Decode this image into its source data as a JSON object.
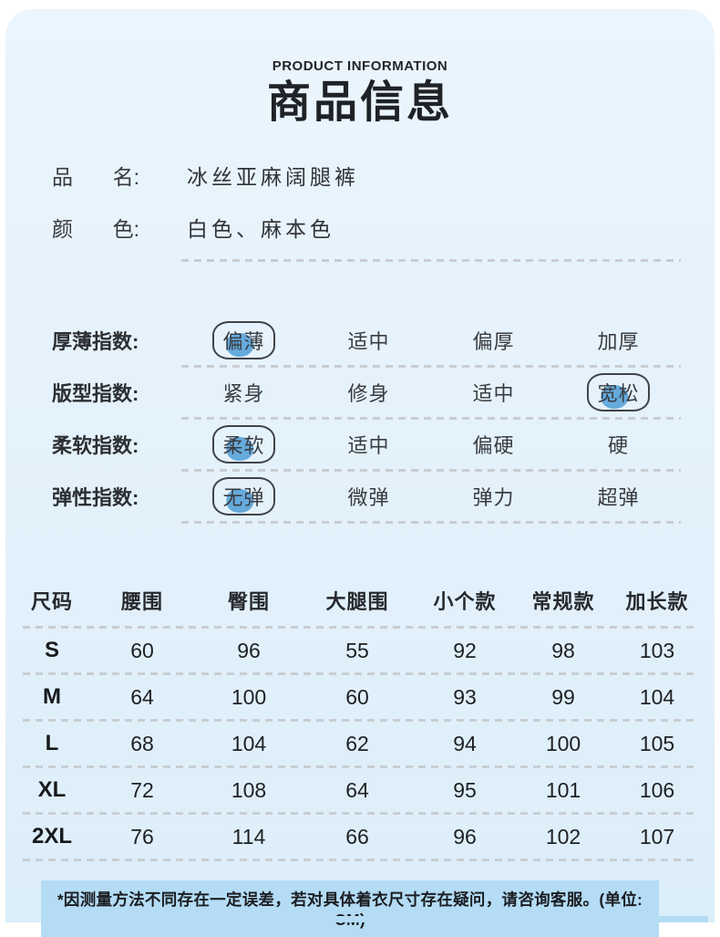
{
  "meta": {
    "eyebrow": "PRODUCT INFORMATION",
    "title": "商品信息"
  },
  "info": {
    "rows": [
      {
        "label_first": "品",
        "label_rest": "名:",
        "value": "冰丝亚麻阔腿裤"
      },
      {
        "label_first": "颜",
        "label_rest": "色:",
        "value": "白色、麻本色"
      }
    ]
  },
  "indices": {
    "rows": [
      {
        "label": "厚薄指数:",
        "options": [
          "偏薄",
          "适中",
          "偏厚",
          "加厚"
        ],
        "selected_index": 0
      },
      {
        "label": "版型指数:",
        "options": [
          "紧身",
          "修身",
          "适中",
          "宽松"
        ],
        "selected_index": 3
      },
      {
        "label": "柔软指数:",
        "options": [
          "柔软",
          "适中",
          "偏硬",
          "硬"
        ],
        "selected_index": 0
      },
      {
        "label": "弹性指数:",
        "options": [
          "无弹",
          "微弹",
          "弹力",
          "超弹"
        ],
        "selected_index": 0
      }
    ]
  },
  "size_table": {
    "headers": [
      "尺码",
      "腰围",
      "臀围",
      "大腿围",
      "小个款",
      "常规款",
      "加长款"
    ],
    "rows": [
      {
        "size": "S",
        "values": [
          "60",
          "96",
          "55",
          "92",
          "98",
          "103"
        ]
      },
      {
        "size": "M",
        "values": [
          "64",
          "100",
          "60",
          "93",
          "99",
          "104"
        ]
      },
      {
        "size": "L",
        "values": [
          "68",
          "104",
          "62",
          "94",
          "100",
          "105"
        ]
      },
      {
        "size": "XL",
        "values": [
          "72",
          "108",
          "64",
          "95",
          "101",
          "106"
        ]
      },
      {
        "size": "2XL",
        "values": [
          "76",
          "114",
          "66",
          "96",
          "102",
          "107"
        ]
      }
    ],
    "unit": "CM"
  },
  "footer": {
    "note": "*因测量方法不同存在一定误差，若对具体着衣尺寸存在疑问，请咨询客服。(单位: CM)"
  },
  "colors": {
    "card_bg": "#e3f1fb",
    "card_bg_top": "#ebf5fd",
    "highlight_band": "#b4dcf5",
    "selection_blob": "#66aadc",
    "pill_outline": "#40444a",
    "dash": "#c9cdd1",
    "text_dark": "#26292e"
  }
}
